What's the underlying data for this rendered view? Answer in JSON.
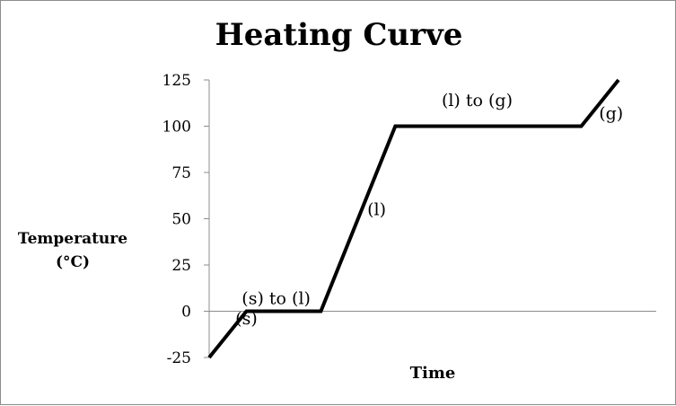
{
  "chart_data": {
    "type": "line",
    "title": "Heating Curve",
    "xlabel": "Time",
    "ylabel": [
      "Temperature",
      "(°C)"
    ],
    "ylim": [
      -25,
      125
    ],
    "yticks": [
      125,
      100,
      75,
      50,
      25,
      0,
      -25
    ],
    "grid": false,
    "series": [
      {
        "x": [
          0,
          10,
          30,
          50,
          100,
          110
        ],
        "y": [
          -25,
          0,
          0,
          100,
          100,
          125
        ],
        "color": "#000000"
      }
    ],
    "annotations": [
      {
        "text": "(s)",
        "x": 10,
        "y": -7
      },
      {
        "text": "(s) to (l)",
        "x": 18,
        "y": 4
      },
      {
        "text": "(l)",
        "x": 45,
        "y": 52
      },
      {
        "text": "(l) to (g)",
        "x": 72,
        "y": 111
      },
      {
        "text": "(g)",
        "x": 108,
        "y": 104
      }
    ]
  }
}
